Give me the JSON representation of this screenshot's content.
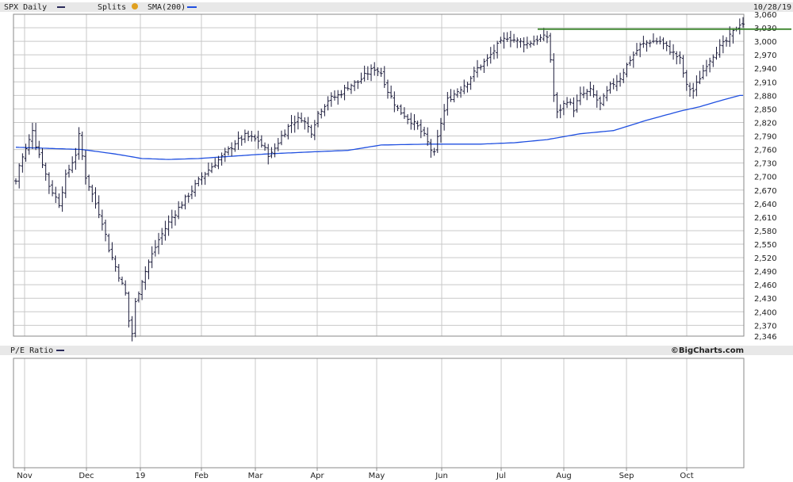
{
  "header": {
    "series_label": "SPX Daily",
    "splits_label": "Splits",
    "sma_label": "SMA(200)",
    "date_label": "10/28/19"
  },
  "lower_panel": {
    "label": "P/E Ratio",
    "copyright": "©BigCharts.com"
  },
  "colors": {
    "price_bars": "#1a1a3a",
    "sma_line": "#1f4fe0",
    "resistance_line": "#2e7d1e",
    "grid": "#c8c8c8",
    "panel_fill": "#e8e8e8",
    "splits_badge": "#e0a020"
  },
  "icons": {
    "series": "dash-swatch",
    "splits": "split-badge",
    "sma": "line-swatch",
    "pe": "dash-swatch"
  },
  "chart_data": {
    "type": "ohlc",
    "ylim": [
      2346,
      3060
    ],
    "y_ticks": [
      "3,060",
      "3,030",
      "3,000",
      "2,970",
      "2,940",
      "2,910",
      "2,880",
      "2,850",
      "2,820",
      "2,790",
      "2,760",
      "2,730",
      "2,700",
      "2,670",
      "2,640",
      "2,610",
      "2,580",
      "2,550",
      "2,520",
      "2,490",
      "2,460",
      "2,430",
      "2,400",
      "2,370",
      "2,346"
    ],
    "x_labels": [
      "Nov",
      "Dec",
      "19",
      "Feb",
      "Mar",
      "Apr",
      "May",
      "Jun",
      "Jul",
      "Aug",
      "Sep",
      "Oct"
    ],
    "price_keypoints": [
      [
        0,
        2690
      ],
      [
        1,
        2725
      ],
      [
        3,
        2760
      ],
      [
        4,
        2780
      ],
      [
        5,
        2806
      ],
      [
        6,
        2770
      ],
      [
        8,
        2730
      ],
      [
        10,
        2680
      ],
      [
        13,
        2640
      ],
      [
        15,
        2700
      ],
      [
        18,
        2750
      ],
      [
        19,
        2790
      ],
      [
        21,
        2700
      ],
      [
        23,
        2660
      ],
      [
        26,
        2600
      ],
      [
        28,
        2540
      ],
      [
        31,
        2480
      ],
      [
        33,
        2440
      ],
      [
        34,
        2380
      ],
      [
        35,
        2352
      ],
      [
        36,
        2420
      ],
      [
        38,
        2470
      ],
      [
        40,
        2510
      ],
      [
        43,
        2560
      ],
      [
        47,
        2610
      ],
      [
        50,
        2640
      ],
      [
        53,
        2670
      ],
      [
        56,
        2700
      ],
      [
        60,
        2730
      ],
      [
        63,
        2750
      ],
      [
        66,
        2775
      ],
      [
        69,
        2790
      ],
      [
        73,
        2780
      ],
      [
        76,
        2750
      ],
      [
        77,
        2750
      ],
      [
        80,
        2790
      ],
      [
        83,
        2820
      ],
      [
        86,
        2830
      ],
      [
        89,
        2800
      ],
      [
        91,
        2840
      ],
      [
        94,
        2870
      ],
      [
        97,
        2880
      ],
      [
        100,
        2900
      ],
      [
        103,
        2910
      ],
      [
        106,
        2930
      ],
      [
        108,
        2940
      ],
      [
        110,
        2930
      ],
      [
        112,
        2890
      ],
      [
        115,
        2850
      ],
      [
        118,
        2830
      ],
      [
        121,
        2810
      ],
      [
        123,
        2790
      ],
      [
        125,
        2760
      ],
      [
        126,
        2750
      ],
      [
        128,
        2820
      ],
      [
        130,
        2870
      ],
      [
        133,
        2890
      ],
      [
        136,
        2910
      ],
      [
        139,
        2940
      ],
      [
        142,
        2960
      ],
      [
        145,
        2990
      ],
      [
        148,
        3010
      ],
      [
        151,
        3000
      ],
      [
        154,
        2995
      ],
      [
        157,
        3005
      ],
      [
        160,
        3010
      ],
      [
        161,
        2960
      ],
      [
        162,
        2880
      ],
      [
        163,
        2840
      ],
      [
        166,
        2870
      ],
      [
        168,
        2850
      ],
      [
        170,
        2880
      ],
      [
        173,
        2890
      ],
      [
        176,
        2860
      ],
      [
        179,
        2900
      ],
      [
        182,
        2920
      ],
      [
        185,
        2960
      ],
      [
        188,
        2990
      ],
      [
        191,
        3000
      ],
      [
        194,
        3000
      ],
      [
        197,
        2980
      ],
      [
        200,
        2960
      ],
      [
        202,
        2900
      ],
      [
        204,
        2890
      ],
      [
        206,
        2920
      ],
      [
        208,
        2950
      ],
      [
        211,
        2980
      ],
      [
        214,
        3000
      ],
      [
        216,
        3020
      ],
      [
        218,
        3040
      ]
    ],
    "sma_keypoints": [
      [
        0,
        2765
      ],
      [
        20,
        2760
      ],
      [
        30,
        2750
      ],
      [
        38,
        2740
      ],
      [
        46,
        2738
      ],
      [
        55,
        2740
      ],
      [
        65,
        2745
      ],
      [
        75,
        2750
      ],
      [
        90,
        2755
      ],
      [
        100,
        2758
      ],
      [
        110,
        2770
      ],
      [
        125,
        2772
      ],
      [
        140,
        2772
      ],
      [
        150,
        2775
      ],
      [
        160,
        2782
      ],
      [
        170,
        2795
      ],
      [
        180,
        2802
      ],
      [
        190,
        2825
      ],
      [
        200,
        2845
      ],
      [
        206,
        2855
      ],
      [
        212,
        2868
      ],
      [
        218,
        2880
      ]
    ],
    "resistance_level": 3027
  }
}
